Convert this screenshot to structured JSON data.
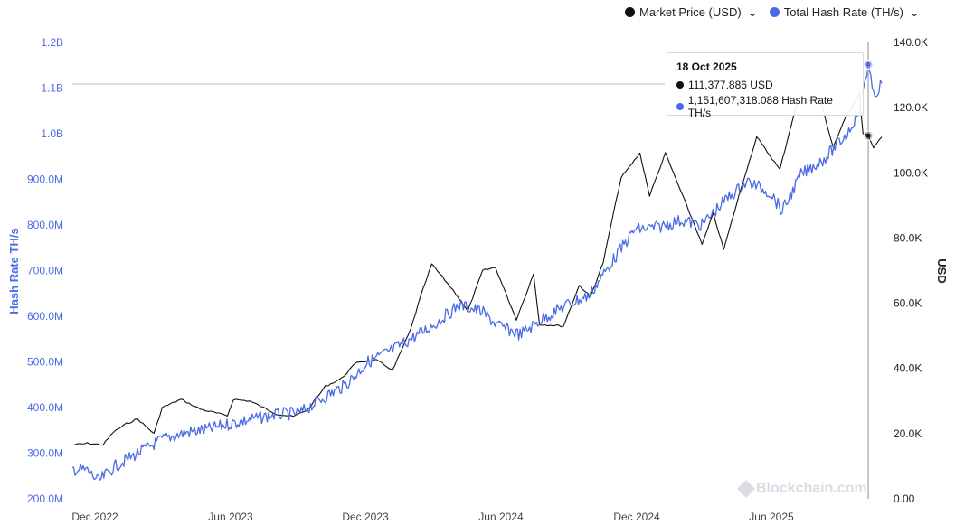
{
  "legend": {
    "price_label": "Market Price (USD)",
    "hash_label": "Total Hash Rate (TH/s)"
  },
  "tooltip": {
    "date": "18 Oct 2025",
    "price_text": "111,377.886 USD",
    "hash_text": "1,151,607,318.088 Hash Rate TH/s"
  },
  "watermark": "Blockchain.com",
  "chart_data": {
    "type": "line",
    "xlabel": "",
    "x_ticks": [
      "Dec 2022",
      "Jun 2023",
      "Dec 2023",
      "Jun 2024",
      "Dec 2024",
      "Jun 2025"
    ],
    "x_range": [
      "2022-11-20",
      "2025-11-05"
    ],
    "y_left": {
      "label": "Hash Rate TH/s",
      "range": [
        200000000,
        1200000000
      ],
      "ticks": [
        "200.0M",
        "300.0M",
        "400.0M",
        "500.0M",
        "600.0M",
        "700.0M",
        "800.0M",
        "900.0M",
        "1.0B",
        "1.1B",
        "1.2B"
      ],
      "color": "#4a6ae6"
    },
    "y_right": {
      "label": "USD",
      "range": [
        0,
        140000
      ],
      "ticks": [
        "0.00",
        "20.0K",
        "40.0K",
        "60.0K",
        "80.0K",
        "100.0K",
        "120.0K",
        "140.0K"
      ],
      "color": "#222222"
    },
    "grid": false,
    "legend_position": "top-right",
    "series": [
      {
        "name": "Market Price (USD)",
        "axis": "right",
        "color": "#111111",
        "points": [
          [
            "2022-11-20",
            16500
          ],
          [
            "2022-12-10",
            17000
          ],
          [
            "2022-12-31",
            16550
          ],
          [
            "2023-01-14",
            20500
          ],
          [
            "2023-01-31",
            23000
          ],
          [
            "2023-02-15",
            24500
          ],
          [
            "2023-03-09",
            20000
          ],
          [
            "2023-03-20",
            28000
          ],
          [
            "2023-04-14",
            30500
          ],
          [
            "2023-05-10",
            27500
          ],
          [
            "2023-06-15",
            25500
          ],
          [
            "2023-06-23",
            30500
          ],
          [
            "2023-07-15",
            30000
          ],
          [
            "2023-08-20",
            26000
          ],
          [
            "2023-09-11",
            25200
          ],
          [
            "2023-10-01",
            27500
          ],
          [
            "2023-10-24",
            34500
          ],
          [
            "2023-11-15",
            37000
          ],
          [
            "2023-12-05",
            42000
          ],
          [
            "2023-12-31",
            42500
          ],
          [
            "2024-01-22",
            39500
          ],
          [
            "2024-02-15",
            52000
          ],
          [
            "2024-02-28",
            62000
          ],
          [
            "2024-03-14",
            72000
          ],
          [
            "2024-04-15",
            63000
          ],
          [
            "2024-05-01",
            57500
          ],
          [
            "2024-05-21",
            70000
          ],
          [
            "2024-06-07",
            71000
          ],
          [
            "2024-07-05",
            55000
          ],
          [
            "2024-07-28",
            69000
          ],
          [
            "2024-08-05",
            53500
          ],
          [
            "2024-09-06",
            53000
          ],
          [
            "2024-09-27",
            65500
          ],
          [
            "2024-10-12",
            62000
          ],
          [
            "2024-10-29",
            72500
          ],
          [
            "2024-11-12",
            88000
          ],
          [
            "2024-11-22",
            98500
          ],
          [
            "2024-12-17",
            106000
          ],
          [
            "2024-12-30",
            93000
          ],
          [
            "2025-01-20",
            106000
          ],
          [
            "2025-02-28",
            84000
          ],
          [
            "2025-03-10",
            78000
          ],
          [
            "2025-03-25",
            87500
          ],
          [
            "2025-04-08",
            76500
          ],
          [
            "2025-05-02",
            96000
          ],
          [
            "2025-05-22",
            111000
          ],
          [
            "2025-06-22",
            101000
          ],
          [
            "2025-07-14",
            121000
          ],
          [
            "2025-08-14",
            123000
          ],
          [
            "2025-09-01",
            108000
          ],
          [
            "2025-09-18",
            117000
          ],
          [
            "2025-10-06",
            124500
          ],
          [
            "2025-10-11",
            112000
          ],
          [
            "2025-10-18",
            111377.886
          ],
          [
            "2025-10-25",
            107500
          ],
          [
            "2025-11-05",
            111000
          ]
        ]
      },
      {
        "name": "Total Hash Rate (TH/s)",
        "axis": "left",
        "color": "#4a6ae6",
        "points": [
          [
            "2022-11-20",
            265000000
          ],
          [
            "2022-12-10",
            262000000
          ],
          [
            "2022-12-25",
            238000000
          ],
          [
            "2023-01-15",
            270000000
          ],
          [
            "2023-02-15",
            300000000
          ],
          [
            "2023-03-20",
            330000000
          ],
          [
            "2023-04-20",
            345000000
          ],
          [
            "2023-05-20",
            352000000
          ],
          [
            "2023-06-20",
            365000000
          ],
          [
            "2023-07-20",
            375000000
          ],
          [
            "2023-08-20",
            385000000
          ],
          [
            "2023-09-20",
            388000000
          ],
          [
            "2023-10-20",
            420000000
          ],
          [
            "2023-11-20",
            450000000
          ],
          [
            "2023-12-20",
            500000000
          ],
          [
            "2024-01-20",
            525000000
          ],
          [
            "2024-02-20",
            555000000
          ],
          [
            "2024-03-20",
            585000000
          ],
          [
            "2024-04-20",
            625000000
          ],
          [
            "2024-05-20",
            610000000
          ],
          [
            "2024-06-10",
            580000000
          ],
          [
            "2024-07-10",
            560000000
          ],
          [
            "2024-08-10",
            595000000
          ],
          [
            "2024-09-10",
            625000000
          ],
          [
            "2024-10-10",
            645000000
          ],
          [
            "2024-11-10",
            720000000
          ],
          [
            "2024-12-10",
            790000000
          ],
          [
            "2025-01-10",
            795000000
          ],
          [
            "2025-02-10",
            810000000
          ],
          [
            "2025-03-10",
            800000000
          ],
          [
            "2025-04-10",
            855000000
          ],
          [
            "2025-05-10",
            895000000
          ],
          [
            "2025-06-10",
            870000000
          ],
          [
            "2025-06-25",
            830000000
          ],
          [
            "2025-07-20",
            910000000
          ],
          [
            "2025-08-20",
            945000000
          ],
          [
            "2025-09-20",
            1000000000
          ],
          [
            "2025-10-05",
            1050000000
          ],
          [
            "2025-10-18",
            1151607318.088
          ],
          [
            "2025-10-25",
            1080000000
          ],
          [
            "2025-11-05",
            1110000000
          ]
        ]
      }
    ],
    "hover_date": "2025-10-18"
  }
}
